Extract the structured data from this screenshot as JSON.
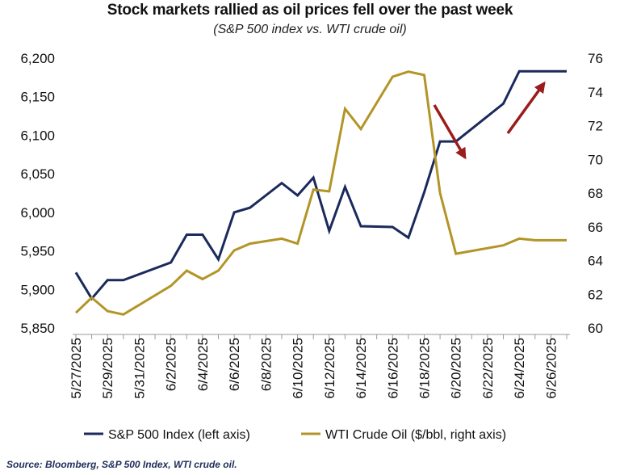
{
  "title": "Stock markets rallied as oil prices fell over the past week",
  "subtitle": "(S&P 500 index vs. WTI crude oil)",
  "source": "Source: Bloomberg, S&P 500 Index, WTI crude oil.",
  "colors": {
    "sp500": "#1b2a5c",
    "wti": "#b39527",
    "arrow": "#9b1c1c"
  },
  "chart_data": {
    "type": "line",
    "title": "Stock markets rallied as oil prices fell over the past week",
    "subtitle": "(S&P 500 index vs. WTI crude oil)",
    "x_start": "5/27/2025",
    "x_end": "6/27/2025",
    "x_tick_labels": [
      "5/27/2025",
      "5/29/2025",
      "5/31/2025",
      "6/2/2025",
      "6/4/2025",
      "6/6/2025",
      "6/8/2025",
      "6/10/2025",
      "6/12/2025",
      "6/14/2025",
      "6/16/2025",
      "6/18/2025",
      "6/20/2025",
      "6/22/2025",
      "6/24/2025",
      "6/26/2025"
    ],
    "y_left": {
      "label": "S&P 500 Index",
      "range": [
        5850,
        6200
      ],
      "tick_labels": [
        "5,850",
        "5,900",
        "5,950",
        "6,000",
        "6,050",
        "6,100",
        "6,150",
        "6,200"
      ]
    },
    "y_right": {
      "label": "WTI Crude Oil ($/bbl)",
      "range": [
        60,
        76
      ],
      "tick_labels": [
        "60",
        "62",
        "64",
        "66",
        "68",
        "70",
        "72",
        "74",
        "76"
      ]
    },
    "series": [
      {
        "name": "S&P 500 Index (left axis)",
        "axis": "left",
        "x": [
          0,
          1,
          2,
          3,
          6,
          7,
          8,
          9,
          10,
          11,
          13,
          14,
          15,
          16,
          17,
          18,
          20,
          21,
          22,
          23,
          24,
          27,
          28,
          29,
          30,
          31
        ],
        "values": [
          5922,
          5888,
          5912,
          5912,
          5935,
          5971,
          5971,
          5939,
          6000,
          6006,
          6038,
          6022,
          6045,
          5976,
          6033,
          5982,
          5981,
          5967,
          6026,
          6092,
          6092,
          6141,
          6183,
          6183,
          6183,
          6183
        ]
      },
      {
        "name": "WTI Crude Oil ($/bbl, right axis)",
        "axis": "right",
        "x": [
          0,
          1,
          2,
          3,
          6,
          7,
          8,
          9,
          10,
          11,
          13,
          14,
          15,
          16,
          17,
          18,
          20,
          21,
          22,
          23,
          24,
          27,
          28,
          29,
          30,
          31
        ],
        "values": [
          60.9,
          61.8,
          61.0,
          60.8,
          62.5,
          63.4,
          62.9,
          63.4,
          64.6,
          65.0,
          65.3,
          65.0,
          68.2,
          68.1,
          73.0,
          71.8,
          74.9,
          75.2,
          75.0,
          68.0,
          64.4,
          64.9,
          65.3,
          65.2,
          65.2,
          65.2
        ]
      }
    ],
    "legend": [
      "S&P 500 Index (left axis)",
      "WTI Crude Oil ($/bbl, right axis)"
    ],
    "legend_position": "bottom",
    "annotations": [
      "red arrow pointing down over oil decline",
      "red arrow pointing up over stock rally"
    ]
  }
}
